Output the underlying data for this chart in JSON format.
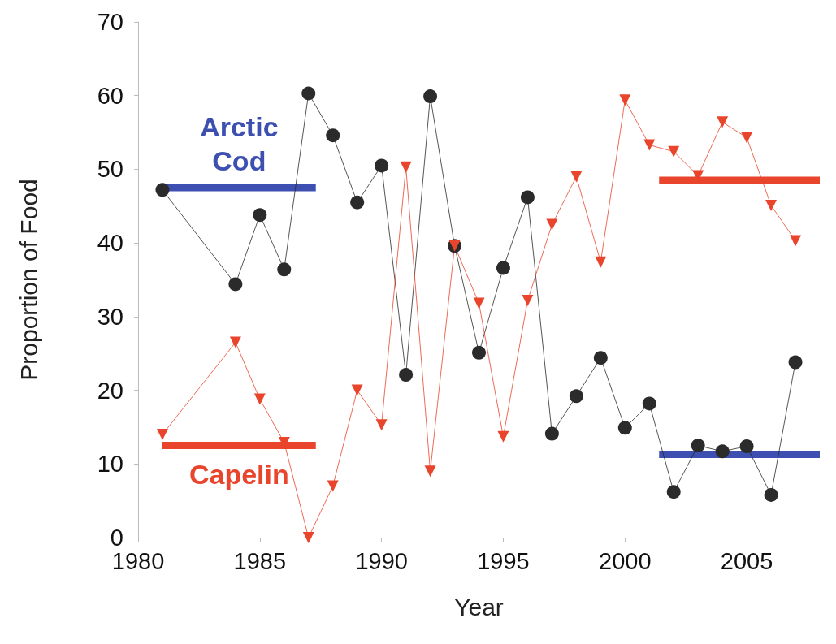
{
  "chart_data": {
    "type": "line",
    "xlabel": "Year",
    "ylabel": "Proportion of Food",
    "xlim": [
      1980,
      2008
    ],
    "xticks": [
      1980,
      1985,
      1990,
      1995,
      2000,
      2005
    ],
    "ylim": [
      0,
      70
    ],
    "yticks": [
      0,
      10,
      20,
      30,
      40,
      50,
      60,
      70
    ],
    "grid": false,
    "legend": false,
    "series": [
      {
        "color": "#2b2b2b",
        "marker": "circle",
        "x": [
          1981,
          1984,
          1985,
          1986,
          1987,
          1988,
          1989,
          1990,
          1991,
          1992,
          1993,
          1994,
          1995,
          1996,
          1997,
          1998,
          1999,
          2000,
          2001,
          2002,
          2003,
          2004,
          2005,
          2006,
          2007
        ],
        "values": [
          47.2,
          34.4,
          43.8,
          36.4,
          60.3,
          54.6,
          45.5,
          50.5,
          22.1,
          59.9,
          39.6,
          25.1,
          36.6,
          46.2,
          14.1,
          19.2,
          24.4,
          14.9,
          18.2,
          6.2,
          12.5,
          11.7,
          12.4,
          5.8,
          23.8
        ]
      },
      {
        "color": "#e8452c",
        "marker": "triangle",
        "x": [
          1981,
          1984,
          1985,
          1986,
          1987,
          1988,
          1989,
          1990,
          1991,
          1992,
          1993,
          1994,
          1995,
          1996,
          1997,
          1998,
          1999,
          2000,
          2001,
          2002,
          2003,
          2004,
          2005,
          2006,
          2007
        ],
        "values": [
          14.0,
          26.5,
          18.8,
          12.9,
          0,
          7.0,
          20.0,
          15.3,
          50.3,
          9.0,
          39.6,
          31.8,
          13.7,
          32.2,
          42.5,
          49.0,
          37.4,
          59.4,
          53.3,
          52.4,
          49.1,
          56.4,
          54.3,
          45.1,
          40.3
        ]
      },
      {
        "name": "Arctic\nCod",
        "color": "#3d4fb0",
        "marker": "none",
        "x": [
          1981,
          1987.3,
          1994,
          2001.4,
          2008
        ],
        "values": [
          47.5,
          47.5,
          null,
          11.3,
          11.3
        ]
      },
      {
        "name": "Capelin",
        "color": "#e8452c",
        "marker": "none",
        "x": [
          1981,
          1987.3,
          1994,
          2001.4,
          2008
        ],
        "values": [
          12.5,
          12.5,
          null,
          48.5,
          48.5
        ]
      }
    ]
  }
}
